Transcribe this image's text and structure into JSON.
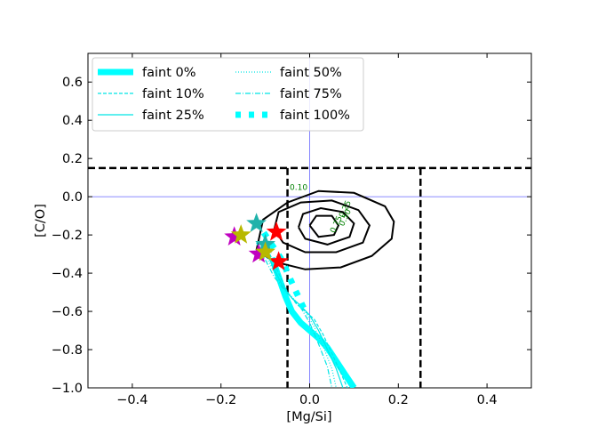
{
  "chart_data": {
    "type": "line",
    "title": "",
    "xlabel": "[Mg/Si]",
    "ylabel": "[C/O]",
    "xlim": [
      -0.5,
      0.5
    ],
    "ylim": [
      -1.0,
      0.75
    ],
    "xticks": [
      -0.4,
      -0.2,
      0.0,
      0.2,
      0.4
    ],
    "yticks": [
      -1.0,
      -0.8,
      -0.6,
      -0.4,
      -0.2,
      0.0,
      0.2,
      0.4,
      0.6
    ],
    "grid": false,
    "legend_placement": "top-left",
    "reference_lines": {
      "horizontal_solid_blue": 0.0,
      "vertical_solid_blue": 0.0,
      "horizontal_dashed_black": 0.15,
      "vertical_dashed_black": [
        -0.05,
        0.25
      ]
    },
    "series": [
      {
        "name": "faint 0%",
        "style": "thick-solid",
        "color": "#00ffff",
        "x": [
          -0.085,
          -0.07,
          -0.055,
          -0.04,
          -0.02,
          0.0,
          0.02,
          0.04,
          0.06,
          0.08,
          0.1
        ],
        "y": [
          -0.32,
          -0.42,
          -0.52,
          -0.6,
          -0.66,
          -0.7,
          -0.74,
          -0.79,
          -0.86,
          -0.93,
          -1.0
        ]
      },
      {
        "name": "faint 10%",
        "style": "dashed",
        "color": "#00e5e5",
        "x": [
          -0.09,
          -0.07,
          -0.05,
          -0.03,
          -0.01,
          0.01,
          0.03,
          0.05,
          0.07,
          0.085
        ],
        "y": [
          -0.3,
          -0.4,
          -0.5,
          -0.56,
          -0.6,
          -0.64,
          -0.72,
          -0.82,
          -0.92,
          -1.0
        ]
      },
      {
        "name": "faint 25%",
        "style": "solid",
        "color": "#00e5e5",
        "x": [
          -0.1,
          -0.08,
          -0.06,
          -0.04,
          -0.02,
          0.0,
          0.02,
          0.04,
          0.06,
          0.075
        ],
        "y": [
          -0.28,
          -0.38,
          -0.47,
          -0.53,
          -0.57,
          -0.62,
          -0.7,
          -0.8,
          -0.9,
          -1.0
        ]
      },
      {
        "name": "faint 50%",
        "style": "dotted",
        "color": "#00e5e5",
        "x": [
          -0.11,
          -0.09,
          -0.07,
          -0.05,
          -0.03,
          -0.01,
          0.01,
          0.03,
          0.05,
          0.06
        ],
        "y": [
          -0.26,
          -0.35,
          -0.44,
          -0.5,
          -0.55,
          -0.6,
          -0.68,
          -0.78,
          -0.9,
          -1.0
        ]
      },
      {
        "name": "faint 75%",
        "style": "dashdot",
        "color": "#00e5e5",
        "x": [
          -0.12,
          -0.1,
          -0.08,
          -0.06,
          -0.04,
          -0.02,
          0.0,
          0.02,
          0.04,
          0.05
        ],
        "y": [
          -0.24,
          -0.33,
          -0.42,
          -0.48,
          -0.53,
          -0.58,
          -0.66,
          -0.77,
          -0.89,
          -1.0
        ]
      },
      {
        "name": "faint 100%",
        "style": "thick-dotted",
        "color": "#00ffff",
        "x": [
          -0.12,
          -0.1,
          -0.08,
          -0.06,
          -0.05,
          -0.03,
          -0.01
        ],
        "y": [
          -0.13,
          -0.2,
          -0.27,
          -0.34,
          -0.4,
          -0.5,
          -0.6
        ]
      }
    ],
    "markers": [
      {
        "shape": "star",
        "color": "#ff0000",
        "x": -0.075,
        "y": -0.185
      },
      {
        "shape": "star",
        "color": "#ff0000",
        "x": -0.07,
        "y": -0.34
      },
      {
        "shape": "star",
        "color": "#20b2aa",
        "x": -0.12,
        "y": -0.14
      },
      {
        "shape": "star",
        "color": "#20b2aa",
        "x": -0.1,
        "y": -0.25
      },
      {
        "shape": "star",
        "color": "#c000c0",
        "x": -0.17,
        "y": -0.21
      },
      {
        "shape": "star",
        "color": "#c000c0",
        "x": -0.115,
        "y": -0.3
      },
      {
        "shape": "star",
        "color": "#b8b800",
        "x": -0.155,
        "y": -0.2
      },
      {
        "shape": "star",
        "color": "#b8b800",
        "x": -0.1,
        "y": -0.29
      }
    ],
    "contours": [
      {
        "label": "0.10",
        "label_x": -0.025,
        "label_y": 0.035,
        "points": [
          [
            -0.12,
            -0.28
          ],
          [
            -0.105,
            -0.12
          ],
          [
            -0.05,
            -0.03
          ],
          [
            0.02,
            0.03
          ],
          [
            0.1,
            0.02
          ],
          [
            0.17,
            -0.05
          ],
          [
            0.19,
            -0.13
          ],
          [
            0.185,
            -0.22
          ],
          [
            0.14,
            -0.31
          ],
          [
            0.07,
            -0.37
          ],
          [
            -0.01,
            -0.38
          ],
          [
            -0.08,
            -0.34
          ],
          [
            -0.12,
            -0.28
          ]
        ]
      },
      {
        "label": "0.25",
        "label_x": 0.085,
        "label_y": -0.07,
        "points": [
          [
            -0.08,
            -0.17
          ],
          [
            -0.07,
            -0.08
          ],
          [
            -0.02,
            -0.03
          ],
          [
            0.05,
            -0.02
          ],
          [
            0.11,
            -0.07
          ],
          [
            0.135,
            -0.15
          ],
          [
            0.12,
            -0.24
          ],
          [
            0.06,
            -0.29
          ],
          [
            -0.01,
            -0.29
          ],
          [
            -0.06,
            -0.24
          ],
          [
            -0.08,
            -0.17
          ]
        ]
      },
      {
        "label": "0.50",
        "label_x": 0.085,
        "label_y": -0.115,
        "points": [
          [
            -0.025,
            -0.16
          ],
          [
            -0.015,
            -0.09
          ],
          [
            0.025,
            -0.06
          ],
          [
            0.075,
            -0.08
          ],
          [
            0.1,
            -0.14
          ],
          [
            0.09,
            -0.21
          ],
          [
            0.04,
            -0.25
          ],
          [
            -0.01,
            -0.22
          ],
          [
            -0.025,
            -0.16
          ]
        ]
      },
      {
        "label": "0.75",
        "label_x": 0.065,
        "label_y": -0.15,
        "points": [
          [
            0.0,
            -0.15
          ],
          [
            0.015,
            -0.1
          ],
          [
            0.05,
            -0.1
          ],
          [
            0.065,
            -0.15
          ],
          [
            0.055,
            -0.2
          ],
          [
            0.02,
            -0.21
          ],
          [
            0.0,
            -0.15
          ]
        ]
      }
    ]
  }
}
